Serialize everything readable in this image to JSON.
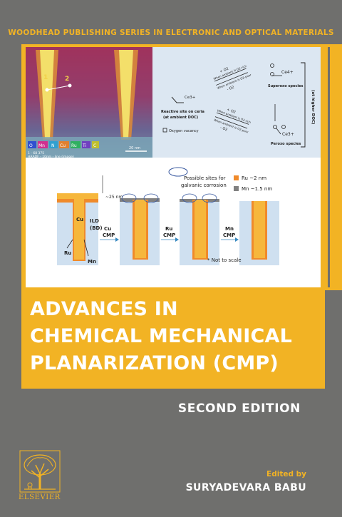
{
  "series_title": "WOODHEAD PUBLISHING SERIES IN ELECTRONIC AND OPTICAL MATERIALS",
  "title_lines": [
    "ADVANCES IN",
    "CHEMICAL MECHANICAL",
    "PLANARIZATION (CMP)"
  ],
  "edition": "SECOND EDITION",
  "edited_by": "Edited by",
  "author": "SURYADEVARA BABU",
  "publisher": "ELSEVIER",
  "colors": {
    "background": "#6f6f6d",
    "accent": "#f2b324",
    "text": "#ffffff"
  },
  "figure": {
    "micrograph": {
      "labels": [
        "1",
        "2"
      ],
      "legend": [
        "O",
        "Mn",
        "N",
        "Cu",
        "Ru",
        "Ti",
        "C"
      ],
      "scale": "20 nm",
      "caption1": "1 - 68 375",
      "caption2": "HAADF - 10nm - line (image)"
    },
    "ceria": {
      "left_label_1": "Reactive site on ceria",
      "left_label_2": "(at ambient DOC)",
      "vacancy_label": "Oxygen vacancy",
      "ce3_label": "Ce3+",
      "top_arrow_label_1": "+ O2",
      "top_arrow_label_2": "When ambient is O2-rich",
      "top_arrow_label_3": "When ambient is O2-poor",
      "top_arrow_label_4": "- O2",
      "bottom_arrow_label_1": "+ O2",
      "bottom_arrow_label_2": "When ambient is O2-rich",
      "bottom_arrow_label_3": "When ambient is O2-poor",
      "bottom_arrow_label_4": "- O2",
      "superoxo_ce": "Ce4+",
      "superoxo_label": "Superoxo species",
      "peroxo_ce": "Ce3+",
      "peroxo_label": "Peroxo species",
      "bracket_label": "(at higher DOC)"
    },
    "process": {
      "galvanic_label_1": "Possible sites for",
      "galvanic_label_2": "galvanic corrosion",
      "legend_ru": "Ru ~2 nm",
      "legend_mn": "Mn ~1.5 nm",
      "thickness": "~25 nm",
      "cu": "Cu",
      "ild_1": "ILD",
      "ild_2": "(BD)",
      "ru": "Ru",
      "mn": "Mn",
      "step1_1": "Cu",
      "step1_2": "CMP",
      "step2_1": "Ru",
      "step2_2": "CMP",
      "step3_1": "Mn",
      "step3_2": "CMP",
      "note": "* Not to scale"
    }
  }
}
